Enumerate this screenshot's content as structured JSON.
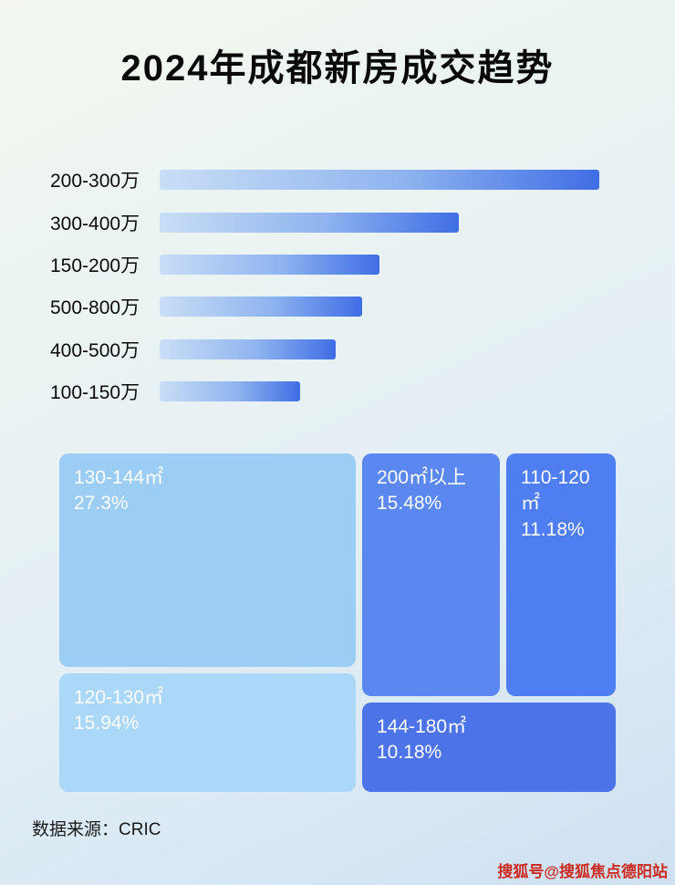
{
  "title": "2024年成都新房成交趋势",
  "source": "数据来源：CRIC",
  "watermark": "搜狐号@搜狐焦点德阳站",
  "colors": {
    "bar_gradient_start": "#c9def6",
    "bar_gradient_end": "#3f6ee5",
    "treemap_light_blue": "#9ccdf5",
    "treemap_lighter_blue": "#abd7f8",
    "treemap_medium_blue": "#5b87f0",
    "treemap_blue": "#4f7df2",
    "treemap_dark_blue": "#4d73e9",
    "watermark_red": "#cb2a20"
  },
  "chart_data": [
    {
      "type": "bar",
      "orientation": "horizontal",
      "title": "2024年成都新房成交趋势",
      "xlabel": "",
      "ylabel": "",
      "value_axis": "none shown — values are relative bar lengths as % of longest bar",
      "categories": [
        "200-300万",
        "300-400万",
        "150-200万",
        "500-800万",
        "400-500万",
        "100-150万"
      ],
      "values": [
        100,
        68,
        50,
        46,
        40,
        32
      ],
      "grid": false,
      "legend": false
    },
    {
      "type": "treemap",
      "unit": "%",
      "items": [
        {
          "label": "130-144㎡",
          "value": 27.3,
          "value_label": "27.3%"
        },
        {
          "label": "200㎡以上",
          "value": 15.48,
          "value_label": "15.48%"
        },
        {
          "label": "110-120㎡",
          "value": 11.18,
          "value_label": "11.18%"
        },
        {
          "label": "120-130㎡",
          "value": 15.94,
          "value_label": "15.94%"
        },
        {
          "label": "144-180㎡",
          "value": 10.18,
          "value_label": "10.18%"
        }
      ]
    }
  ]
}
